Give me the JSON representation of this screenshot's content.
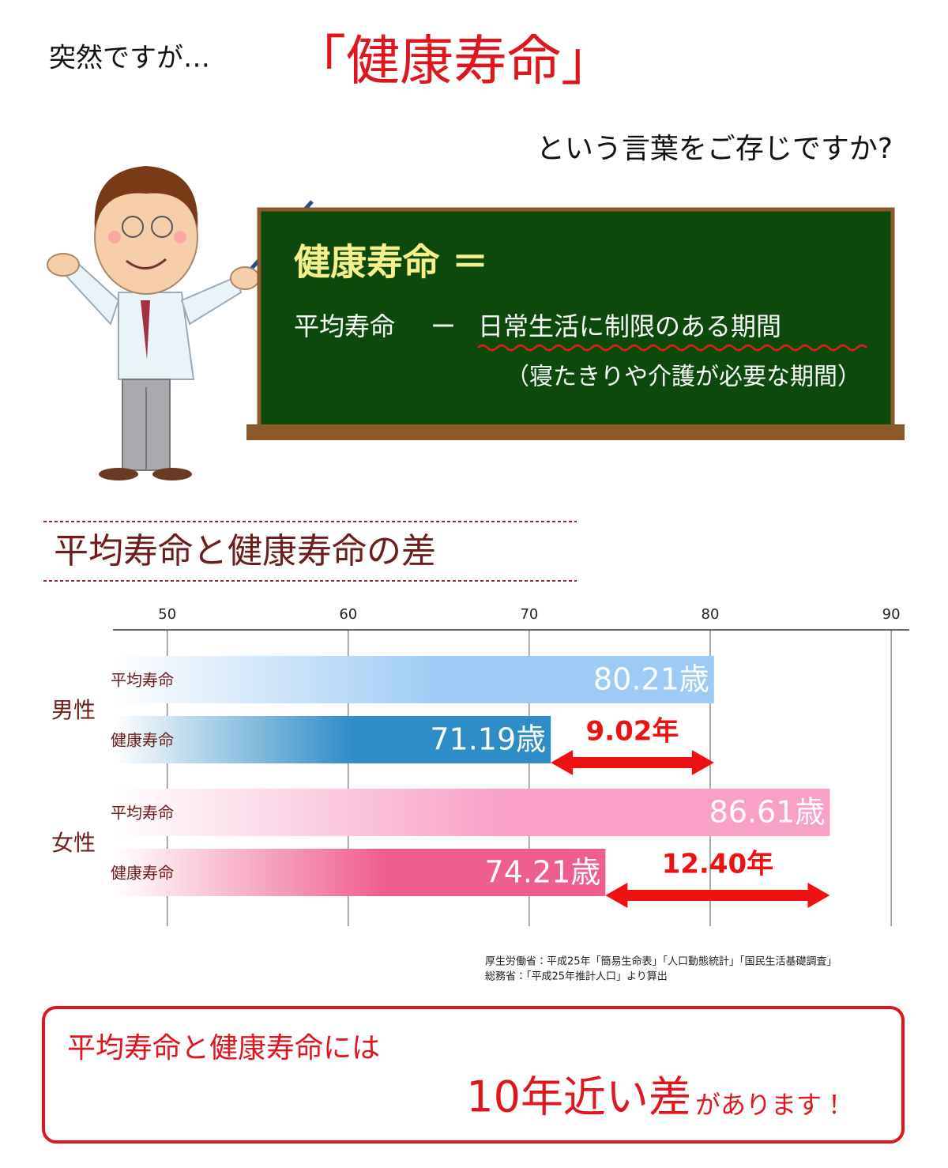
{
  "header": {
    "lead": "突然ですが…",
    "keyword": "「健康寿命」",
    "question": "という言葉をご存じですか?"
  },
  "blackboard": {
    "term": "健康寿命 ＝",
    "formula": [
      "平均寿命",
      "ー",
      "日常生活に制限のある期間"
    ],
    "note": "（寝たきりや介護が必要な期間）"
  },
  "chart_data": {
    "type": "bar",
    "orientation": "horizontal",
    "title": "平均寿命と健康寿命の差",
    "groups": [
      "男性",
      "女性"
    ],
    "series": [
      {
        "name": "平均寿命",
        "colors": [
          "#9ccbf6",
          "#f8a0c6"
        ],
        "values": [
          80.21,
          86.61
        ],
        "value_labels": [
          "80.21歳",
          "86.61歳"
        ]
      },
      {
        "name": "健康寿命",
        "colors": [
          "#2e8cc6",
          "#ef5f8d"
        ],
        "values": [
          71.19,
          74.21
        ],
        "value_labels": [
          "71.19歳",
          "74.21歳"
        ]
      }
    ],
    "differences": [
      {
        "value": 9.02,
        "label": "9.02年"
      },
      {
        "value": 12.4,
        "label": "12.40年"
      }
    ],
    "difference_color": "#ee1111",
    "xlim": [
      47,
      91
    ],
    "xticks": [
      50,
      60,
      70,
      80,
      90
    ],
    "grid": true,
    "source": [
      "厚生労働省：平成25年「簡易生命表」「人口動態統計」「国民生活基礎調査」",
      "総務省：「平成25年推計人口」より算出"
    ]
  },
  "conclusion": {
    "line1": "平均寿命と健康寿命には",
    "emphasis": "10年近い差",
    "tail": "があります！"
  }
}
